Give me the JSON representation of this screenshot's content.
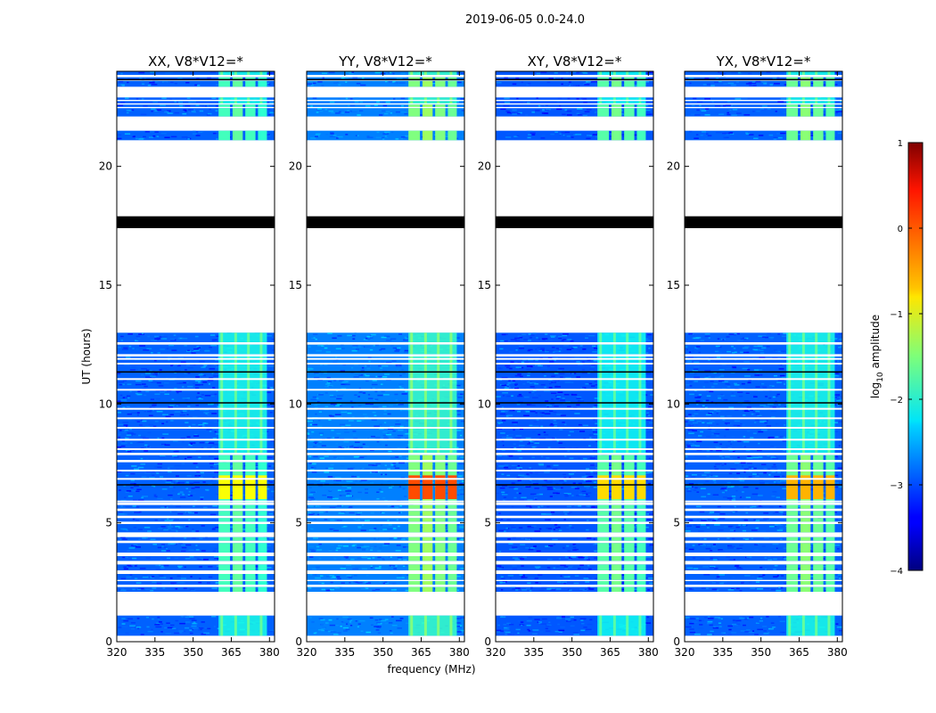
{
  "chart_data": {
    "type": "heatmap",
    "title": "2019-06-05 0.0-24.0",
    "xlabel": "frequency (MHz)",
    "ylabel": "UT (hours)",
    "xlim": [
      320,
      382
    ],
    "ylim": [
      0,
      24
    ],
    "xticks": [
      320,
      335,
      350,
      365,
      380
    ],
    "xtick_labels": [
      "320",
      "335",
      "350",
      "365",
      "380"
    ],
    "yticks": [
      0,
      5,
      10,
      15,
      20
    ],
    "ytick_labels": [
      "0",
      "5",
      "10",
      "15",
      "20"
    ],
    "colorbar": {
      "label_prefix": "log",
      "label_sub": "10",
      "label_suffix": " amplitude",
      "range": [
        -4,
        1
      ],
      "ticks": [
        1,
        0,
        -1,
        -2,
        -3,
        -4
      ],
      "tick_labels": [
        "1",
        "0",
        "−1",
        "−2",
        "−3",
        "−4"
      ],
      "colormap": "jet"
    },
    "panels": [
      {
        "title": "XX, V8*V12=*",
        "band_level": -1.8,
        "peak_level": -0.9,
        "bg_level": -2.9
      },
      {
        "title": "YY, V8*V12=*",
        "band_level": -1.5,
        "peak_level": 0.0,
        "bg_level": -2.75
      },
      {
        "title": "XY, V8*V12=*",
        "band_level": -1.7,
        "peak_level": -0.7,
        "bg_level": -2.95
      },
      {
        "title": "YX, V8*V12=*",
        "band_level": -1.6,
        "peak_level": -0.5,
        "bg_level": -2.9
      }
    ],
    "channel_band_mhz": [
      360,
      379
    ],
    "channel_column_edges_mhz": [
      [
        360,
        364.5
      ],
      [
        365.5,
        369.5
      ],
      [
        370.5,
        374.5
      ],
      [
        375.5,
        379
      ]
    ],
    "strong_band_intervals_ut": [
      [
        2.1,
        10.0
      ],
      [
        21.1,
        21.5
      ],
      [
        22.1,
        22.7
      ],
      [
        23.35,
        23.9
      ]
    ],
    "data_segments_ut": [
      [
        0.25,
        1.1
      ],
      [
        2.1,
        2.3
      ],
      [
        2.4,
        2.55
      ],
      [
        2.6,
        2.85
      ],
      [
        3.0,
        3.25
      ],
      [
        3.4,
        3.6
      ],
      [
        3.75,
        4.15
      ],
      [
        4.25,
        4.4
      ],
      [
        4.6,
        4.95
      ],
      [
        5.05,
        5.2
      ],
      [
        5.3,
        5.5
      ],
      [
        5.6,
        5.75
      ],
      [
        5.85,
        7.55
      ],
      [
        7.65,
        7.85
      ],
      [
        7.95,
        12.0
      ],
      [
        12.1,
        12.5
      ],
      [
        12.6,
        13.0
      ],
      [
        17.4,
        17.9
      ],
      [
        21.1,
        21.5
      ],
      [
        22.1,
        22.45
      ],
      [
        22.5,
        22.6
      ],
      [
        22.65,
        22.75
      ],
      [
        22.8,
        22.9
      ],
      [
        23.35,
        23.6
      ],
      [
        23.65,
        23.75
      ],
      [
        23.85,
        24.0
      ]
    ],
    "flagged_black_intervals_ut": [
      [
        17.4,
        17.9
      ]
    ],
    "dark_lines_ut": [
      6.6,
      10.05,
      11.35,
      23.65
    ],
    "white_lines_ut": [
      5.9,
      6.85,
      7.2,
      8.1,
      8.5,
      9.0,
      9.4,
      9.8,
      10.6,
      11.05,
      11.7,
      11.9
    ]
  }
}
